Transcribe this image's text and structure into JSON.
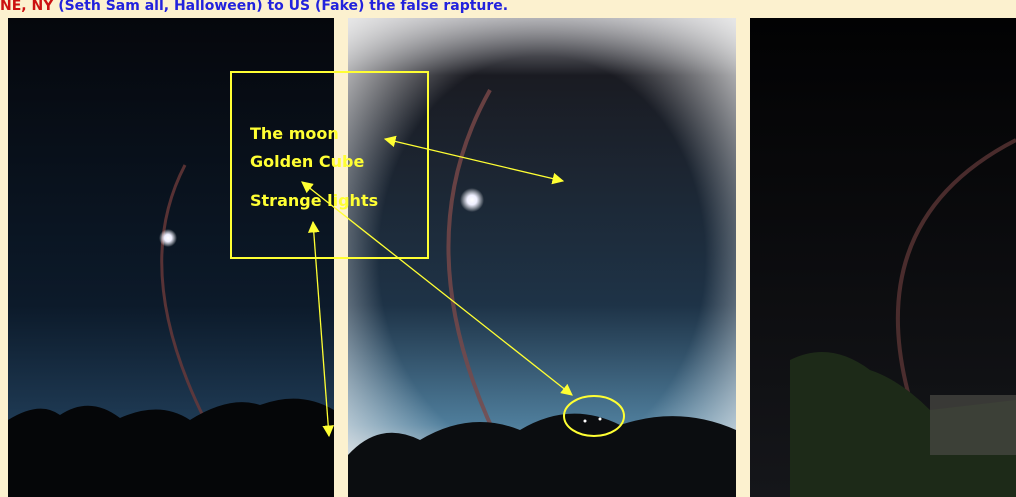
{
  "header": {
    "lead": "NE, NY",
    "rest": " (Seth Sam all, Halloween) to US (Fake) the false rapture."
  },
  "annotations": {
    "labels": [
      "The moon",
      "Golden Cube",
      "Strange lights"
    ]
  }
}
